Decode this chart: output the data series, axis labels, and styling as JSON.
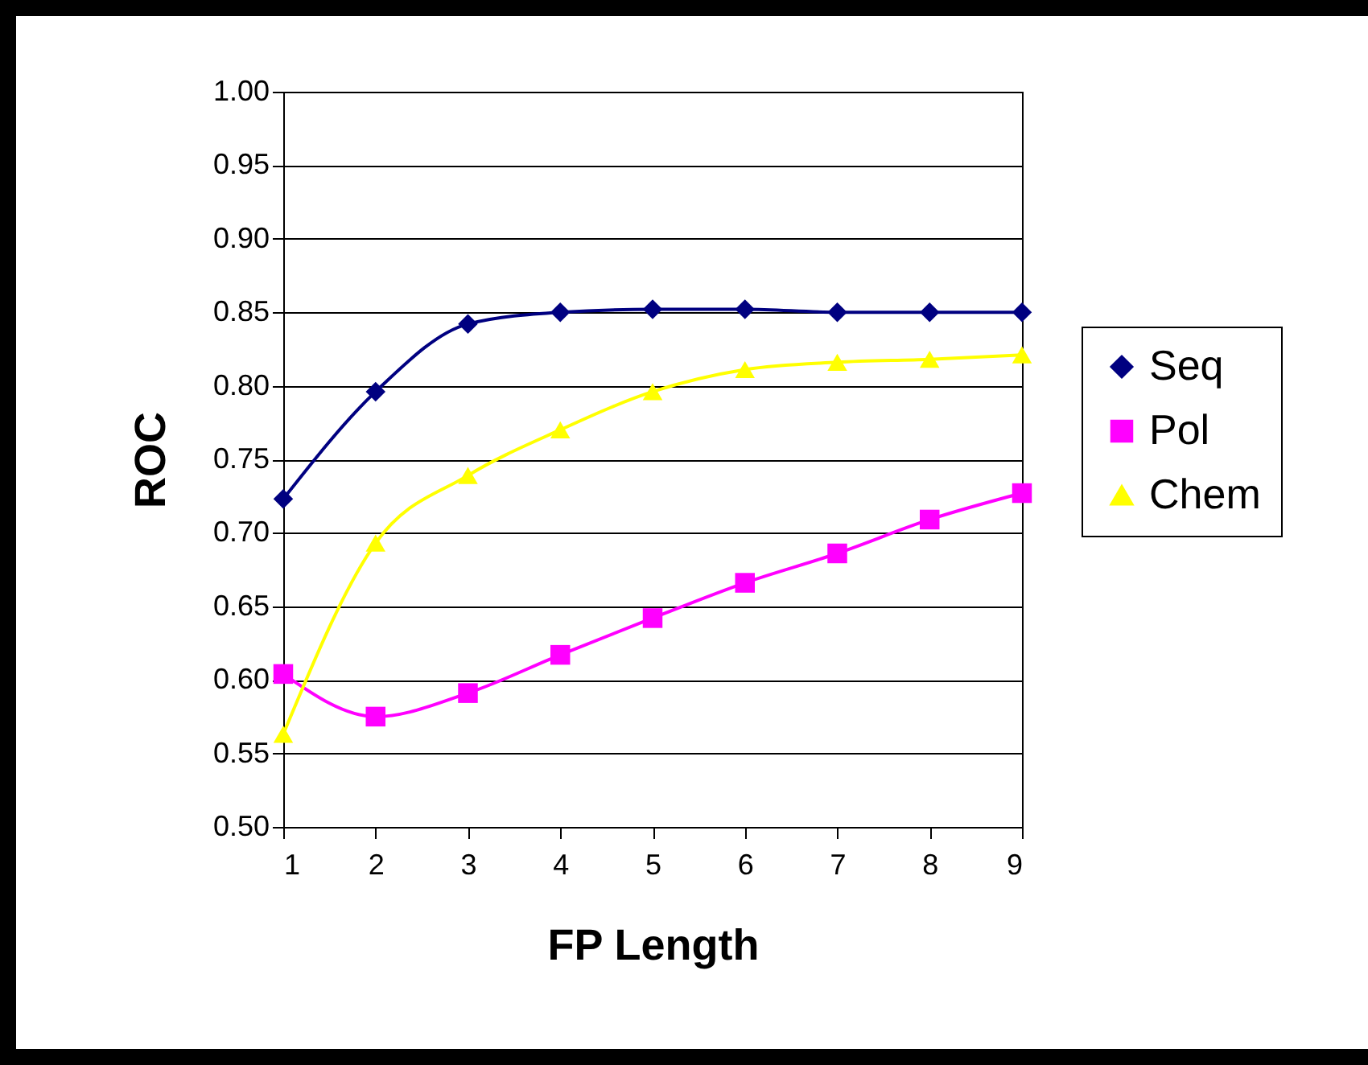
{
  "chart_data": {
    "type": "line",
    "xlabel": "FP Length",
    "ylabel": "ROC",
    "x": [
      1,
      2,
      3,
      4,
      5,
      6,
      7,
      8,
      9
    ],
    "series": [
      {
        "name": "Seq",
        "color": "#000080",
        "marker": "diamond",
        "values": [
          0.723,
          0.796,
          0.842,
          0.85,
          0.852,
          0.852,
          0.85,
          0.85,
          0.85
        ]
      },
      {
        "name": "Pol",
        "color": "#ff00ff",
        "marker": "square",
        "values": [
          0.604,
          0.575,
          0.591,
          0.617,
          0.642,
          0.666,
          0.686,
          0.709,
          0.727
        ]
      },
      {
        "name": "Chem",
        "color": "#ffff00",
        "marker": "triangle",
        "values": [
          0.563,
          0.693,
          0.739,
          0.77,
          0.796,
          0.811,
          0.816,
          0.818,
          0.821
        ]
      }
    ],
    "xlim": [
      1,
      9
    ],
    "xticks": [
      1,
      2,
      3,
      4,
      5,
      6,
      7,
      8,
      9
    ],
    "ylim": [
      0.5,
      1.0
    ],
    "yticks": [
      {
        "value": 0.5,
        "label": "0.50"
      },
      {
        "value": 0.55,
        "label": "0.55"
      },
      {
        "value": 0.6,
        "label": "0.60"
      },
      {
        "value": 0.65,
        "label": "0.65"
      },
      {
        "value": 0.7,
        "label": "0.70"
      },
      {
        "value": 0.75,
        "label": "0.75"
      },
      {
        "value": 0.8,
        "label": "0.80"
      },
      {
        "value": 0.85,
        "label": "0.85"
      },
      {
        "value": 0.9,
        "label": "0.90"
      },
      {
        "value": 0.95,
        "label": "0.95"
      },
      {
        "value": 1.0,
        "label": "1.00"
      }
    ],
    "grid": "y",
    "legend": "right",
    "line_style": "solid"
  }
}
